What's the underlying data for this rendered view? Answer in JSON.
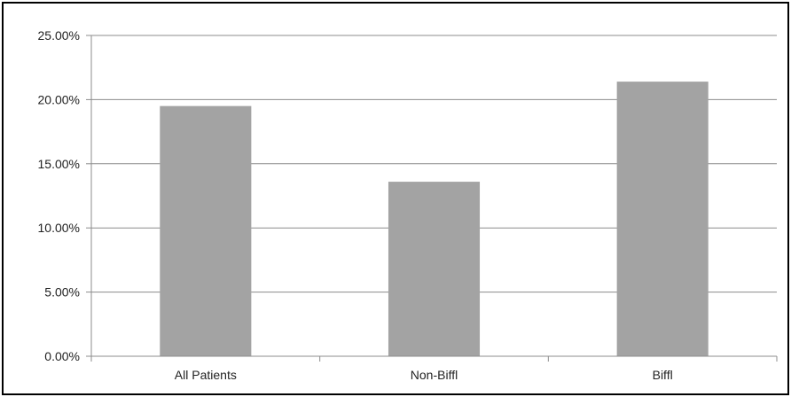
{
  "chart_data": {
    "type": "bar",
    "title": "",
    "xlabel": "",
    "ylabel": "",
    "categories": [
      "All Patients",
      "Non-Biffl",
      "Biffl"
    ],
    "values": [
      19.5,
      13.6,
      21.4
    ],
    "ylim": [
      0,
      25
    ],
    "yticks": [
      "0.00%",
      "5.00%",
      "10.00%",
      "15.00%",
      "20.00%",
      "25.00%"
    ],
    "ytick_values": [
      0,
      5,
      10,
      15,
      20,
      25
    ],
    "grid": true,
    "legend": "none",
    "colors": {
      "bar": "#a3a3a3",
      "grid": "#8c8c8c",
      "axis": "#8c8c8c",
      "border": "#000000"
    }
  }
}
